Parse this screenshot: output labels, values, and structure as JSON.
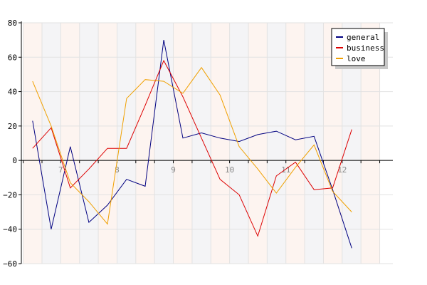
{
  "chart_data": {
    "type": "line",
    "x": [
      6.5,
      6.83,
      7.17,
      7.5,
      7.83,
      8.17,
      8.5,
      8.83,
      9.17,
      9.5,
      9.83,
      10.17,
      10.5,
      10.83,
      11.17,
      11.5,
      11.83,
      12.17,
      12.5
    ],
    "xticks": [
      7,
      8,
      9,
      10,
      11,
      12
    ],
    "xtick_labels": [
      "7",
      "8",
      "9",
      "10",
      "11",
      "12"
    ],
    "xlim": [
      6.3,
      12.9
    ],
    "ylim": [
      -60,
      80
    ],
    "yticks": [
      -60,
      -40,
      -20,
      0,
      20,
      40,
      60,
      80
    ],
    "ytick_labels": [
      "−60",
      "−40",
      "−20",
      "0",
      "20",
      "40",
      "60",
      "80"
    ],
    "grid": true,
    "legend_position": "top-right",
    "series": [
      {
        "name": "general",
        "color": "#000080",
        "values": [
          23,
          -40,
          8,
          -36,
          -26,
          -11,
          -15,
          70,
          13,
          16,
          13,
          11,
          15,
          17,
          12,
          14,
          -17,
          -51,
          null
        ]
      },
      {
        "name": "business",
        "color": "#dd0000",
        "values": [
          7,
          19,
          -16,
          -5,
          7,
          7,
          32,
          58,
          37,
          13,
          -11,
          -20,
          -44,
          -9,
          -1,
          -17,
          -16,
          18,
          null
        ]
      },
      {
        "name": "love",
        "color": "#f0a000",
        "values": [
          46,
          20,
          -13,
          -24,
          -37,
          36,
          47,
          46,
          39,
          54,
          38,
          8,
          -5,
          -19,
          -4,
          9,
          -18,
          -30,
          null
        ]
      }
    ]
  }
}
